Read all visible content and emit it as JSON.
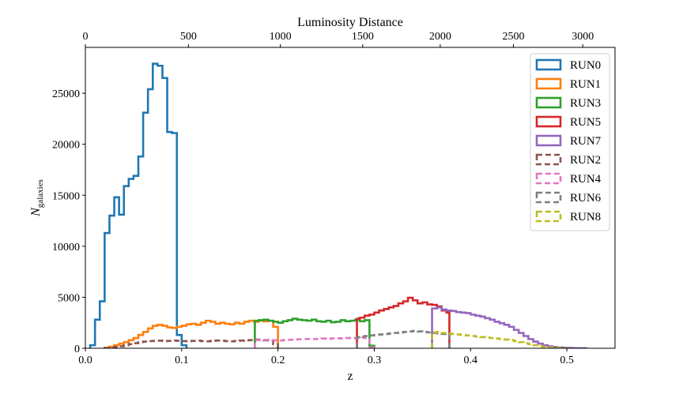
{
  "chart_data": {
    "type": "step-histogram",
    "xlabel": "z",
    "ylabel_prefix": "N",
    "ylabel_sub": "galaxies",
    "top_xlabel": "Luminosity Distance",
    "xlim": [
      0.0,
      0.55
    ],
    "ylim": [
      0,
      29500
    ],
    "x_ticks": [
      0.0,
      0.1,
      0.2,
      0.3,
      0.4,
      0.5
    ],
    "x_tick_labels": [
      "0.0",
      "0.1",
      "0.2",
      "0.3",
      "0.4",
      "0.5"
    ],
    "y_ticks": [
      0,
      5000,
      10000,
      15000,
      20000,
      25000
    ],
    "y_tick_labels": [
      "0",
      "5000",
      "10000",
      "15000",
      "20000",
      "25000"
    ],
    "top_ticks_z": [
      0.0,
      0.107,
      0.2025,
      0.288,
      0.3685,
      0.4445,
      0.5165
    ],
    "top_tick_labels": [
      "0",
      "500",
      "1000",
      "1500",
      "2000",
      "2500",
      "3000"
    ],
    "grid": false,
    "legend_position": "upper right",
    "series": [
      {
        "name": "RUN0",
        "color": "#1f77b4",
        "dashed": false,
        "bins": [
          0.005,
          0.01,
          0.015,
          0.02,
          0.025,
          0.03,
          0.035,
          0.04,
          0.045,
          0.05,
          0.055,
          0.06,
          0.065,
          0.07,
          0.075,
          0.08,
          0.085,
          0.09,
          0.095,
          0.1,
          0.105
        ],
        "counts": [
          300,
          2800,
          4600,
          11300,
          13000,
          14800,
          13100,
          15900,
          16600,
          16900,
          18800,
          23100,
          25400,
          27900,
          27700,
          26500,
          21200,
          21100,
          1300,
          300
        ]
      },
      {
        "name": "RUN1",
        "color": "#ff7f0e",
        "dashed": false,
        "bins": [
          0.02,
          0.025,
          0.03,
          0.035,
          0.04,
          0.045,
          0.05,
          0.055,
          0.06,
          0.065,
          0.07,
          0.075,
          0.08,
          0.085,
          0.09,
          0.095,
          0.1,
          0.105,
          0.11,
          0.115,
          0.12,
          0.125,
          0.13,
          0.135,
          0.14,
          0.145,
          0.15,
          0.155,
          0.16,
          0.165,
          0.17,
          0.175,
          0.18,
          0.185,
          0.19,
          0.195,
          0.2
        ],
        "counts": [
          50,
          150,
          300,
          450,
          600,
          800,
          1000,
          1300,
          1600,
          1950,
          2200,
          2300,
          2200,
          2050,
          2000,
          2100,
          2200,
          2350,
          2400,
          2300,
          2500,
          2700,
          2600,
          2400,
          2500,
          2400,
          2350,
          2500,
          2400,
          2600,
          2700,
          2600,
          2700,
          2650,
          2700,
          2100
        ]
      },
      {
        "name": "RUN3",
        "color": "#2ca02c",
        "dashed": false,
        "bins": [
          0.176,
          0.18,
          0.185,
          0.19,
          0.195,
          0.2,
          0.205,
          0.21,
          0.215,
          0.22,
          0.225,
          0.23,
          0.235,
          0.24,
          0.245,
          0.25,
          0.255,
          0.26,
          0.265,
          0.27,
          0.275,
          0.28,
          0.285,
          0.29,
          0.295,
          0.3
        ],
        "counts": [
          2700,
          2750,
          2800,
          2700,
          2600,
          2500,
          2650,
          2750,
          2900,
          2800,
          2750,
          2700,
          2800,
          2650,
          2600,
          2700,
          2550,
          2600,
          2750,
          2650,
          2700,
          2800,
          2650,
          2750,
          250
        ]
      },
      {
        "name": "RUN5",
        "color": "#d62728",
        "dashed": false,
        "bins": [
          0.282,
          0.285,
          0.29,
          0.295,
          0.3,
          0.305,
          0.31,
          0.315,
          0.32,
          0.325,
          0.33,
          0.335,
          0.34,
          0.345,
          0.35,
          0.355,
          0.36,
          0.365,
          0.37,
          0.375,
          0.378
        ],
        "counts": [
          2900,
          3000,
          3200,
          3300,
          3500,
          3700,
          3850,
          4000,
          4150,
          4400,
          4600,
          4950,
          4700,
          4400,
          4500,
          4300,
          4250,
          4100,
          3700,
          3500
        ]
      },
      {
        "name": "RUN7",
        "color": "#9467bd",
        "dashed": false,
        "bins": [
          0.36,
          0.365,
          0.37,
          0.375,
          0.38,
          0.385,
          0.39,
          0.395,
          0.4,
          0.405,
          0.41,
          0.415,
          0.42,
          0.425,
          0.43,
          0.435,
          0.44,
          0.445,
          0.45,
          0.455,
          0.46,
          0.465,
          0.47,
          0.475,
          0.48,
          0.485,
          0.49,
          0.495,
          0.5,
          0.505,
          0.51,
          0.515,
          0.52
        ],
        "counts": [
          3900,
          4000,
          3800,
          3700,
          3650,
          3550,
          3500,
          3450,
          3300,
          3200,
          3100,
          2950,
          2800,
          2600,
          2450,
          2300,
          2100,
          1800,
          1500,
          1200,
          900,
          650,
          450,
          300,
          200,
          120,
          80,
          50,
          30,
          20,
          10,
          5
        ]
      },
      {
        "name": "RUN2",
        "color": "#8c564b",
        "dashed": true,
        "bins": [
          0.02,
          0.025,
          0.03,
          0.035,
          0.04,
          0.045,
          0.05,
          0.055,
          0.06,
          0.065,
          0.07,
          0.075,
          0.08,
          0.085,
          0.09,
          0.095,
          0.1,
          0.105,
          0.11,
          0.115,
          0.12,
          0.125,
          0.13,
          0.135,
          0.14,
          0.145,
          0.15,
          0.155,
          0.16,
          0.165,
          0.17,
          0.175,
          0.18,
          0.185,
          0.19,
          0.195,
          0.2
        ],
        "counts": [
          20,
          60,
          120,
          200,
          300,
          400,
          500,
          600,
          650,
          700,
          720,
          750,
          700,
          720,
          760,
          730,
          700,
          680,
          720,
          750,
          700,
          680,
          720,
          760,
          740,
          700,
          680,
          720,
          750,
          780,
          800,
          850,
          820,
          780,
          750,
          400
        ]
      },
      {
        "name": "RUN4",
        "color": "#e377c2",
        "dashed": true,
        "bins": [
          0.176,
          0.18,
          0.185,
          0.19,
          0.195,
          0.2,
          0.205,
          0.21,
          0.215,
          0.22,
          0.225,
          0.23,
          0.235,
          0.24,
          0.245,
          0.25,
          0.255,
          0.26,
          0.265,
          0.27,
          0.275,
          0.28,
          0.285,
          0.29,
          0.295,
          0.3
        ],
        "counts": [
          800,
          850,
          820,
          800,
          780,
          760,
          800,
          830,
          850,
          880,
          900,
          920,
          900,
          930,
          950,
          920,
          960,
          980,
          950,
          1000,
          1020,
          980,
          1050,
          1000,
          100
        ]
      },
      {
        "name": "RUN6",
        "color": "#7f7f7f",
        "dashed": true,
        "bins": [
          0.282,
          0.285,
          0.29,
          0.295,
          0.3,
          0.305,
          0.31,
          0.315,
          0.32,
          0.325,
          0.33,
          0.335,
          0.34,
          0.345,
          0.35,
          0.355,
          0.36,
          0.365,
          0.37,
          0.375,
          0.378
        ],
        "counts": [
          1100,
          1150,
          1200,
          1250,
          1300,
          1350,
          1400,
          1450,
          1500,
          1550,
          1600,
          1650,
          1700,
          1650,
          1600,
          1550,
          1500,
          1450,
          1400,
          1300
        ]
      },
      {
        "name": "RUN8",
        "color": "#bcbd22",
        "dashed": true,
        "bins": [
          0.36,
          0.365,
          0.37,
          0.375,
          0.38,
          0.385,
          0.39,
          0.395,
          0.4,
          0.405,
          0.41,
          0.415,
          0.42,
          0.425,
          0.43,
          0.435,
          0.44,
          0.445,
          0.45,
          0.455,
          0.46,
          0.465,
          0.47,
          0.475,
          0.48,
          0.485,
          0.49,
          0.495,
          0.5
        ],
        "counts": [
          1550,
          1600,
          1500,
          1450,
          1400,
          1350,
          1300,
          1250,
          1200,
          1150,
          1100,
          1050,
          1000,
          950,
          900,
          850,
          800,
          700,
          600,
          500,
          400,
          300,
          200,
          150,
          100,
          60,
          30,
          10
        ]
      }
    ]
  }
}
